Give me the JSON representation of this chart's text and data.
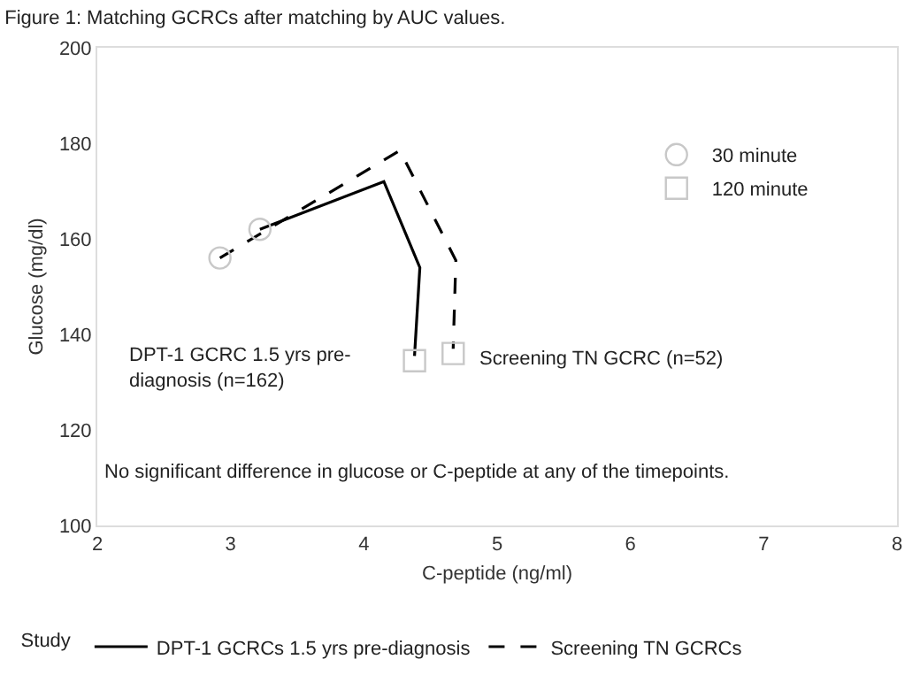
{
  "chart_data": {
    "type": "line",
    "title": "Figure 1: Matching GCRCs after matching by AUC values.",
    "xlabel": "C-peptide (ng/ml)",
    "ylabel": "Glucose (mg/dl)",
    "legend_title": "Study",
    "series": [
      {
        "name": "DPT-1 GCRCs 1.5 yrs pre-diagnosis",
        "color": "#000000",
        "x": [
          3.22,
          4.15,
          4.42,
          4.38
        ],
        "values": [
          162,
          172,
          154,
          135.5
        ],
        "line_style": "solid",
        "marker": "none"
      },
      {
        "name": "Screening TN GCRCs",
        "color": "#000000",
        "x": [
          2.92,
          4.27,
          4.69,
          4.67
        ],
        "values": [
          156,
          178.5,
          155.5,
          137
        ],
        "line_style": "dashed",
        "marker": "none"
      },
      {
        "name": "30 minute",
        "type": "scatter",
        "color": "#c8c8c8",
        "x": [
          2.92,
          3.22
        ],
        "values": [
          156,
          162
        ],
        "marker": "circle"
      },
      {
        "name": "120 minute",
        "type": "scatter",
        "color": "#c8c8c8",
        "x": [
          4.38,
          4.67
        ],
        "values": [
          134.5,
          136
        ],
        "marker": "square"
      }
    ],
    "xlim": [
      2,
      8
    ],
    "xticks": [
      2,
      3,
      4,
      5,
      6,
      7,
      8
    ],
    "ylim": [
      100,
      200
    ],
    "yticks": [
      100,
      120,
      140,
      160,
      180,
      200
    ],
    "legend": "bottom",
    "annotations": [
      "DPT-1 GCRC 1.5 yrs pre-\ndiagnosis (n=162)",
      "Screening TN GCRC (n=52)",
      "No significant difference in glucose or C-peptide at any of the timepoints."
    ]
  }
}
